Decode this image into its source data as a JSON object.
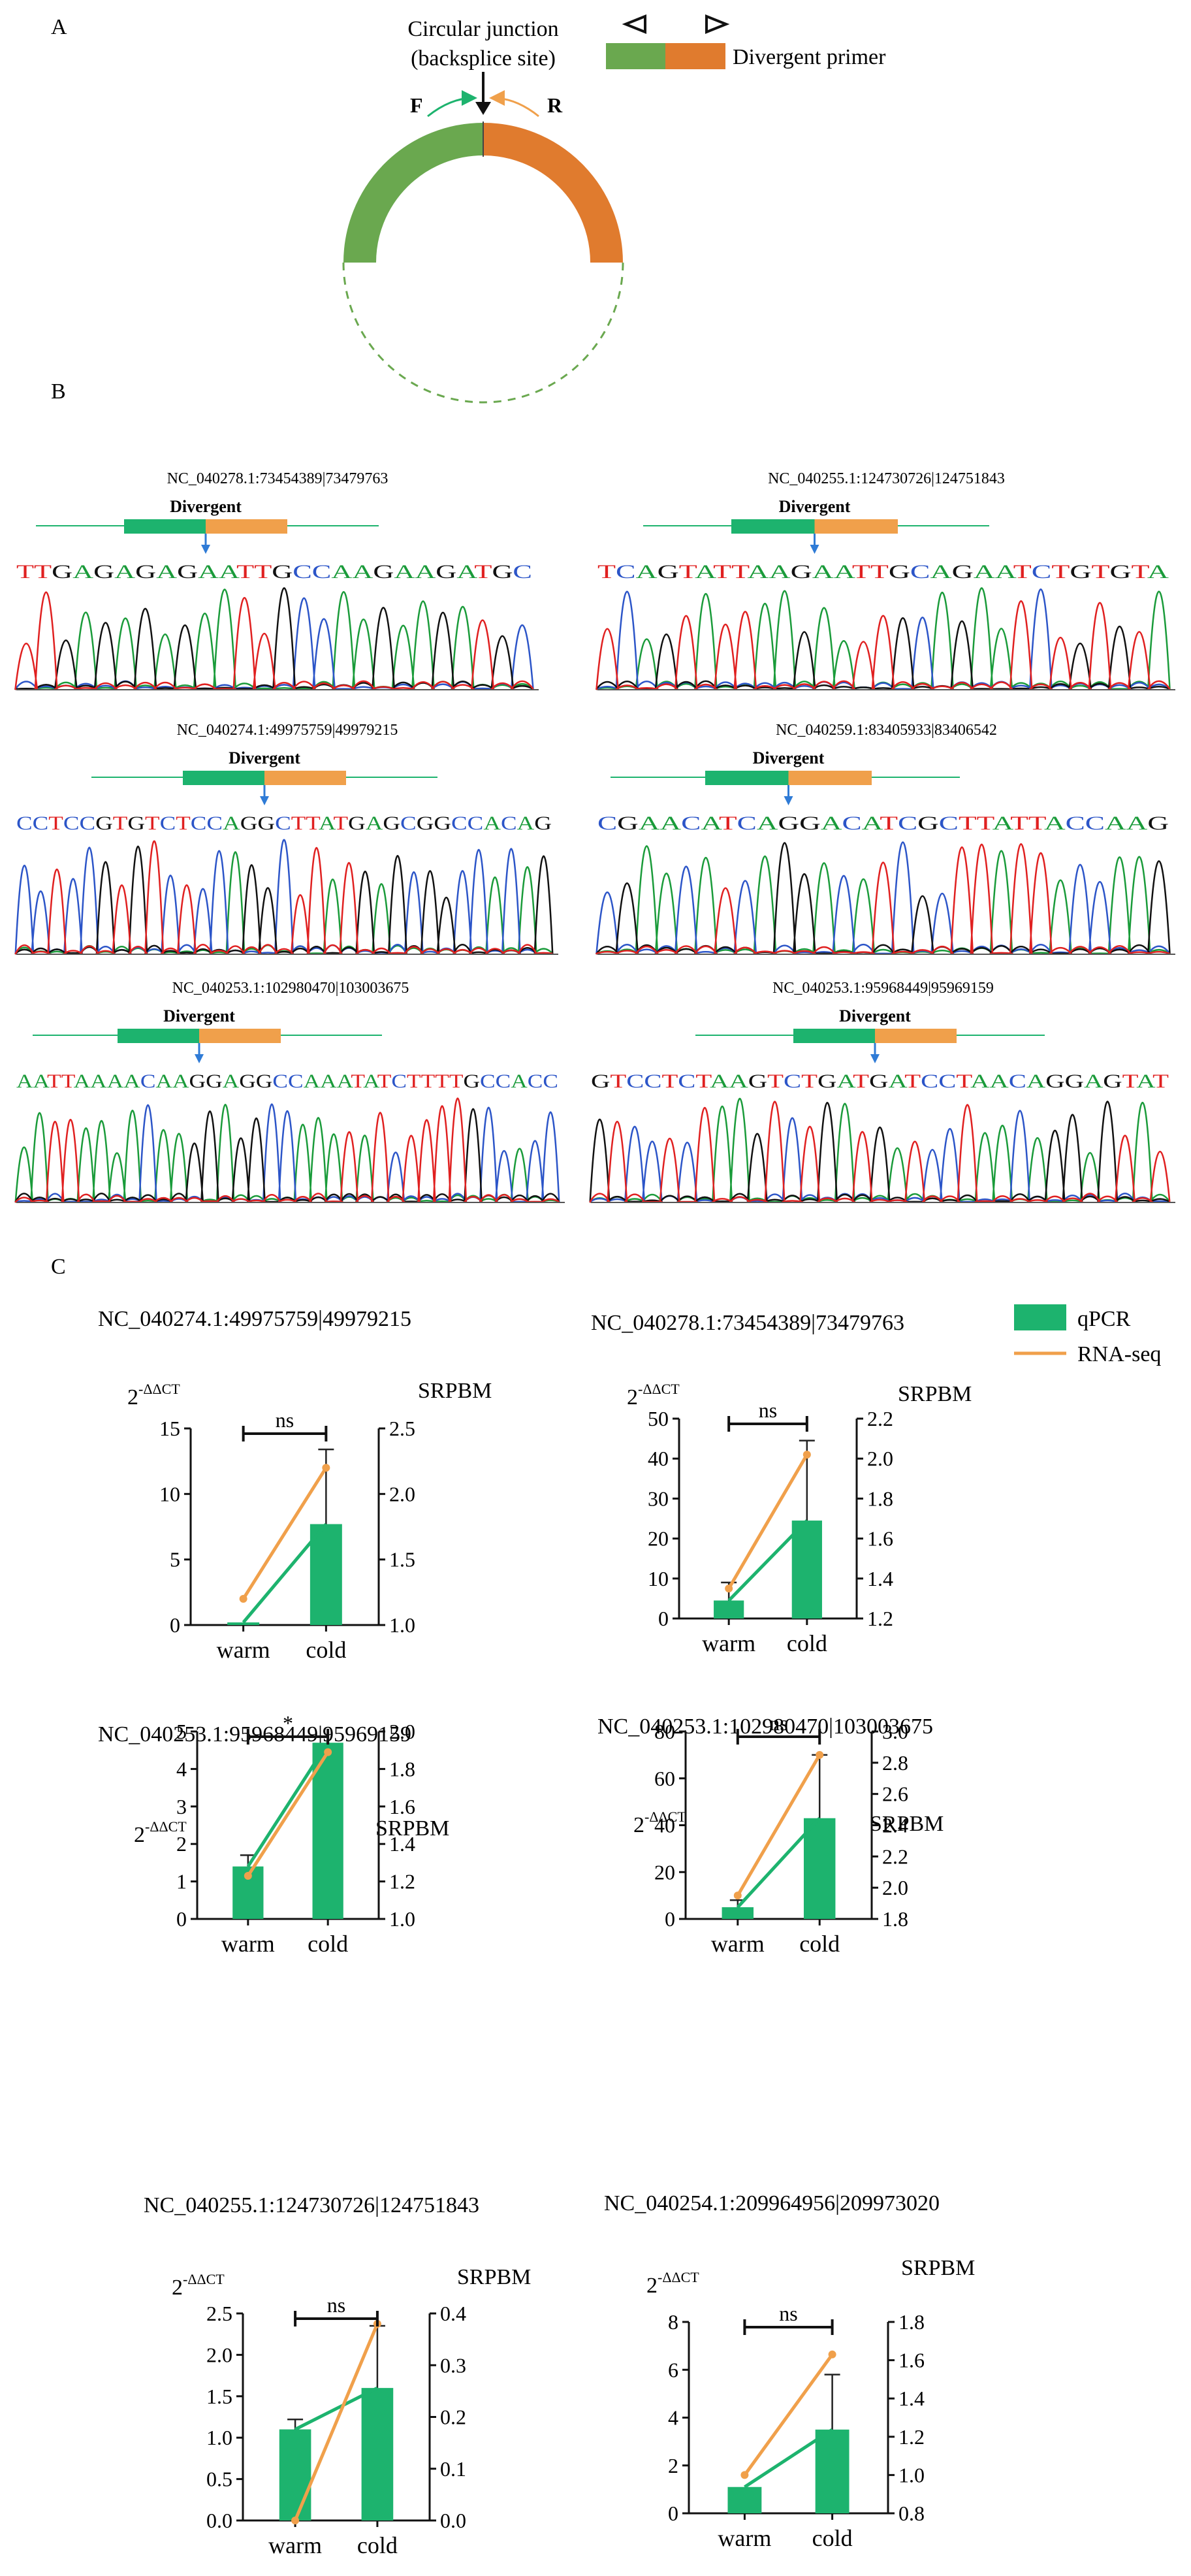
{
  "colors": {
    "green": "#1db36e",
    "orange": "#f0a04b",
    "arc_green": "#6aa84f",
    "arc_orange": "#e07b2e",
    "arrow_blue": "#2f7bd6",
    "base_A": "#1a9b3a",
    "base_C": "#2c55c8",
    "base_G": "#111111",
    "base_T": "#e02020"
  },
  "panel_labels": {
    "a": "A",
    "b": "B",
    "c": "C"
  },
  "panelA": {
    "junction_line1": "Circular junction",
    "junction_line2": "(backsplice site)",
    "f_label": "F",
    "r_label": "R",
    "primer_label": "Divergent primer",
    "fwd_icon": "forward-primer-icon",
    "rev_icon": "reverse-primer-icon"
  },
  "panelB": {
    "traces": [
      {
        "id": "NC_040278.1:73454389|73479763",
        "label": "Divergent",
        "seq": "TTGAGAGAGAATTGCCAAGAAGATGC"
      },
      {
        "id": "NC_040255.1:124730726|124751843",
        "label": "Divergent",
        "seq": "TCAGTATTAAGAATTGCAGAATCTGTGTA"
      },
      {
        "id": "NC_040274.1:49975759|49979215",
        "label": "Divergent",
        "seq": "CCTCCGTGTCTCCAGGCTTATGAGCGGCCACAG"
      },
      {
        "id": "NC_040259.1:83405933|83406542",
        "label": "Divergent",
        "seq": "CGAACATCAGGACATCGCTTATTACCAAG"
      },
      {
        "id": "NC_040253.1:102980470|103003675",
        "label": "Divergent",
        "seq": "AATTAAAACAAGGAGGCCAAATATCTTTTGCCACC"
      },
      {
        "id": "NC_040253.1:95968449|95969159",
        "label": "Divergent",
        "seq": "GTCCTCTAAGTCTGATGATCCTAACAGGAGTAT"
      }
    ]
  },
  "legend": {
    "qpcr": "qPCR",
    "rnaseq": "RNA-seq"
  },
  "chart_data": [
    {
      "type": "bar",
      "title": "NC_040274.1:49975759|49979215",
      "categories": [
        "warm",
        "cold"
      ],
      "series": [
        {
          "name": "qPCR",
          "values": [
            0.2,
            7.7
          ],
          "error": [
            0,
            5.7
          ]
        },
        {
          "name": "RNA-seq",
          "values": [
            1.2,
            2.2
          ]
        }
      ],
      "ylabel_left_base": "2",
      "ylabel_left_exp": "-ΔΔCT",
      "ylabel_right": "SRPBM",
      "ylim_left": [
        0,
        15
      ],
      "yticks_left": [
        "0",
        "5",
        "10",
        "15"
      ],
      "ylim_right": [
        1.0,
        2.5
      ],
      "yticks_right": [
        "1.0",
        "1.5",
        "2.0",
        "2.5"
      ],
      "significance": "ns"
    },
    {
      "type": "bar",
      "title": "NC_040278.1:73454389|73479763",
      "categories": [
        "warm",
        "cold"
      ],
      "series": [
        {
          "name": "qPCR",
          "values": [
            4.5,
            24.5
          ],
          "error": [
            4.5,
            20
          ]
        },
        {
          "name": "RNA-seq",
          "values": [
            1.35,
            2.02
          ]
        }
      ],
      "ylabel_left_base": "2",
      "ylabel_left_exp": "-ΔΔCT",
      "ylabel_right": "SRPBM",
      "ylim_left": [
        0,
        50
      ],
      "yticks_left": [
        "0",
        "10",
        "20",
        "30",
        "40",
        "50"
      ],
      "ylim_right": [
        1.2,
        2.2
      ],
      "yticks_right": [
        "1.2",
        "1.4",
        "1.6",
        "1.8",
        "2.0",
        "2.2"
      ],
      "significance": "ns"
    },
    {
      "type": "bar",
      "title": "NC_040253.1:95968449|95969159",
      "categories": [
        "warm",
        "cold"
      ],
      "series": [
        {
          "name": "qPCR",
          "values": [
            1.4,
            4.7
          ],
          "error": [
            0.3,
            0
          ]
        },
        {
          "name": "RNA-seq",
          "values": [
            1.23,
            1.89
          ]
        }
      ],
      "ylabel_left_base": "2",
      "ylabel_left_exp": "-ΔΔCT",
      "ylabel_right": "SRPBM",
      "ylim_left": [
        0,
        5
      ],
      "yticks_left": [
        "0",
        "1",
        "2",
        "3",
        "4",
        "5"
      ],
      "ylim_right": [
        1.0,
        2.0
      ],
      "yticks_right": [
        "1.0",
        "1.2",
        "1.4",
        "1.6",
        "1.8",
        "2.0"
      ],
      "significance": "*"
    },
    {
      "type": "bar",
      "title": "NC_040253.1:102980470|103003675",
      "categories": [
        "warm",
        "cold"
      ],
      "series": [
        {
          "name": "qPCR",
          "values": [
            5,
            43
          ],
          "error": [
            3,
            27
          ]
        },
        {
          "name": "RNA-seq",
          "values": [
            1.95,
            2.85
          ]
        }
      ],
      "ylabel_left_base": "2",
      "ylabel_left_exp": "-ΔΔCT",
      "ylabel_right": "SRPBM",
      "ylim_left": [
        0,
        80
      ],
      "yticks_left": [
        "0",
        "20",
        "40",
        "60",
        "80"
      ],
      "ylim_right": [
        1.8,
        3.0
      ],
      "yticks_right": [
        "1.8",
        "2.0",
        "2.2",
        "2.4",
        "2.6",
        "2.8",
        "3.0"
      ],
      "significance": "ns"
    },
    {
      "type": "bar",
      "title": "NC_040255.1:124730726|124751843",
      "categories": [
        "warm",
        "cold"
      ],
      "series": [
        {
          "name": "qPCR",
          "values": [
            1.1,
            1.6
          ],
          "error": [
            0.12,
            0.75
          ]
        },
        {
          "name": "RNA-seq",
          "values": [
            0.0,
            0.38
          ]
        }
      ],
      "ylabel_left_base": "2",
      "ylabel_left_exp": "-ΔΔCT",
      "ylabel_right": "SRPBM",
      "ylim_left": [
        0,
        2.5
      ],
      "yticks_left": [
        "0.0",
        "0.5",
        "1.0",
        "1.5",
        "2.0",
        "2.5"
      ],
      "ylim_right": [
        0,
        0.4
      ],
      "yticks_right": [
        "0.0",
        "0.1",
        "0.2",
        "0.3",
        "0.4"
      ],
      "significance": "ns"
    },
    {
      "type": "bar",
      "title": "NC_040254.1:209964956|209973020",
      "categories": [
        "warm",
        "cold"
      ],
      "series": [
        {
          "name": "qPCR",
          "values": [
            1.1,
            3.5
          ],
          "error": [
            0,
            2.3
          ]
        },
        {
          "name": "RNA-seq",
          "values": [
            1.0,
            1.63
          ]
        }
      ],
      "ylabel_left_base": "2",
      "ylabel_left_exp": "-ΔΔCT",
      "ylabel_right": "SRPBM",
      "ylim_left": [
        0,
        8
      ],
      "yticks_left": [
        "0",
        "2",
        "4",
        "6",
        "8"
      ],
      "ylim_right": [
        0.8,
        1.8
      ],
      "yticks_right": [
        "0.8",
        "1.0",
        "1.2",
        "1.4",
        "1.6",
        "1.8"
      ],
      "significance": "ns"
    }
  ]
}
